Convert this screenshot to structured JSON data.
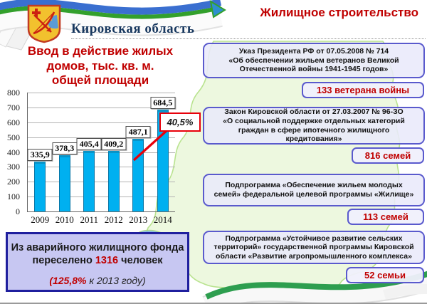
{
  "header": {
    "region_name": "Кировская область",
    "page_title": "Жилищное строительство"
  },
  "chart": {
    "title": "Ввод в действие жилых\nдомов, тыс. кв. м.\nобщей площади"
  },
  "chart_data": {
    "type": "bar",
    "title": "Ввод в действие жилых домов, тыс. кв. м. общей площади",
    "categories": [
      "2009",
      "2010",
      "2011",
      "2012",
      "2013",
      "2014"
    ],
    "values": [
      335.9,
      378.3,
      405.4,
      409.2,
      487.1,
      684.5
    ],
    "value_labels": [
      "335,9",
      "378,3",
      "405,4",
      "409,2",
      "487,1",
      "684,5"
    ],
    "ylim": [
      0,
      800
    ],
    "ytick_step": 100,
    "grid": true,
    "legend": "none",
    "bar_color": "#00B0F0",
    "annotation": "40,5%"
  },
  "resettlement": {
    "line1": "Из аварийного жилищного фонда",
    "line2_pre": "переселено ",
    "line2_value": "1316",
    "line2_post": " человек",
    "line3_value": "(125,8%",
    "line3_rest": " к 2013 году)"
  },
  "programs": [
    {
      "text": "Указ Президента РФ от  07.05.2008  № 714\n«Об обеспечении жильем ветеранов Великой\nОтечественной войны 1941-1945 годов»",
      "badge": "133 ветерана войны"
    },
    {
      "text": "Закон Кировской области от 27.03.2007 № 96-ЗО\n«О социальной поддержке отдельных категорий\nграждан в сфере ипотечного жилищного\nкредитования»",
      "badge": "816 семей"
    },
    {
      "text": "Подпрограмма «Обеспечение жильем молодых\nсемей» федеральной целевой программы «Жилище»",
      "badge": "113 семей"
    },
    {
      "text": "Подпрограмма «Устойчивое развитие сельских\nтерриторий» государственной программы Кировской\nобласти «Развитие агропромышленного комплекса»",
      "badge": "52 семьи"
    }
  ],
  "colors": {
    "accent_red": "#C00000",
    "bar_cyan": "#00B0F0",
    "box_border_purple": "#5A5ACD",
    "region_navy": "#17375E",
    "annotation_red": "#E8000A",
    "map_green_fill": "#E7F6D4",
    "map_green_stroke": "#B9E38F"
  }
}
